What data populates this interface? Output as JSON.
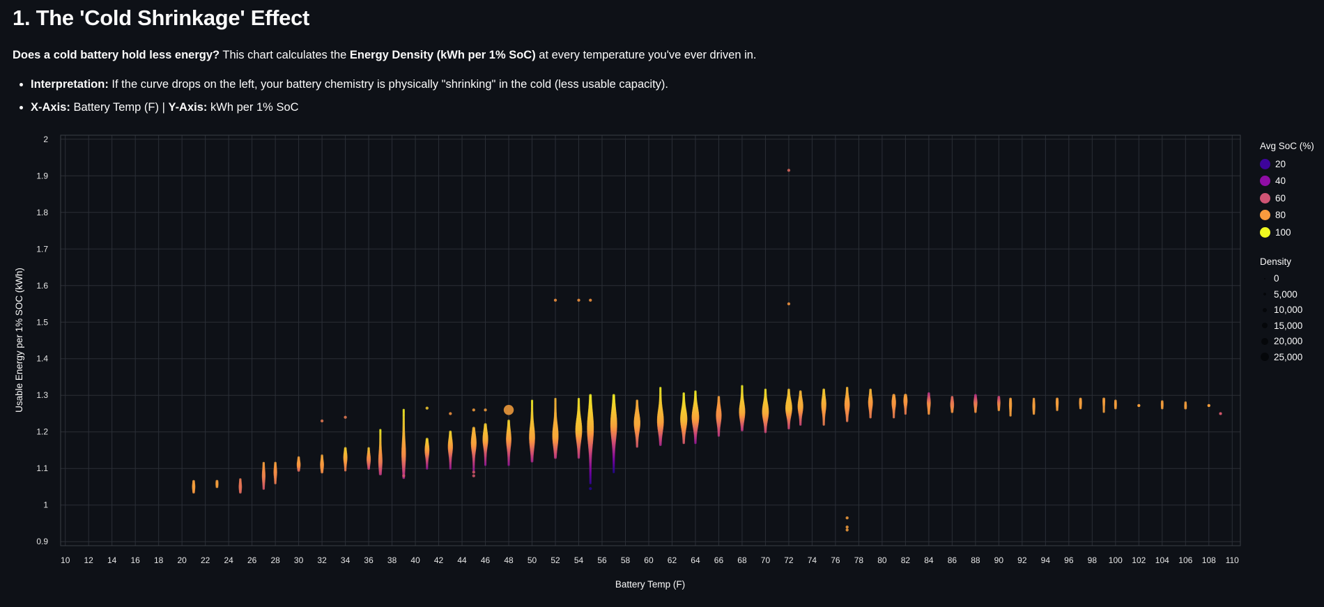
{
  "header": {
    "title": "1. The 'Cold Shrinkage' Effect",
    "intro": [
      {
        "text": "Does a cold battery hold less energy?",
        "bold": true
      },
      {
        "text": " This chart calculates the ",
        "bold": false
      },
      {
        "text": "Energy Density (kWh per 1% SoC)",
        "bold": true
      },
      {
        "text": " at every temperature you've ever driven in.",
        "bold": false
      }
    ],
    "bullets": [
      [
        {
          "text": "Interpretation:",
          "bold": true
        },
        {
          "text": " If the curve drops on the left, your battery chemistry is physically \"shrinking\" in the cold (less usable capacity).",
          "bold": false
        }
      ],
      [
        {
          "text": "X-Axis:",
          "bold": true
        },
        {
          "text": " Battery Temp (F) | ",
          "bold": false
        },
        {
          "text": "Y-Axis:",
          "bold": true
        },
        {
          "text": " kWh per 1% SoC",
          "bold": false
        }
      ]
    ]
  },
  "chart_data": {
    "type": "scatter",
    "xlabel": "Battery Temp (F)",
    "ylabel": "Usable Energy per 1% SOC (kWh)",
    "xlim": [
      9.6,
      110.7
    ],
    "ylim": [
      0.889,
      2.011
    ],
    "xticks": [
      10,
      12,
      14,
      16,
      18,
      20,
      22,
      24,
      26,
      28,
      30,
      32,
      34,
      36,
      38,
      40,
      42,
      44,
      46,
      48,
      50,
      52,
      54,
      56,
      58,
      60,
      62,
      64,
      66,
      68,
      70,
      72,
      74,
      76,
      78,
      80,
      82,
      84,
      86,
      88,
      90,
      92,
      94,
      96,
      98,
      100,
      102,
      104,
      106,
      108,
      110
    ],
    "yticks": [
      0.9,
      1.0,
      1.1,
      1.2,
      1.3,
      1.4,
      1.5,
      1.6,
      1.7,
      1.8,
      1.9,
      2.0
    ],
    "grid": true,
    "colormap": "plasma",
    "color_stops": [
      "#0d0887",
      "#7e03a8",
      "#cc4778",
      "#f89540",
      "#f0f921"
    ],
    "background": "#0e1117",
    "strip_columns": [
      "temp_f",
      "min_kwh",
      "median_kwh",
      "max_kwh",
      "soc_at_min",
      "soc_at_median",
      "soc_at_max",
      "relative_density"
    ],
    "strips": [
      [
        21,
        1.035,
        1.05,
        1.065,
        78,
        80,
        80,
        0.2
      ],
      [
        23,
        1.05,
        1.058,
        1.065,
        80,
        80,
        80,
        0.15
      ],
      [
        25,
        1.035,
        1.05,
        1.07,
        65,
        68,
        70,
        0.2
      ],
      [
        27,
        1.045,
        1.08,
        1.115,
        60,
        72,
        80,
        0.25
      ],
      [
        28,
        1.06,
        1.09,
        1.115,
        70,
        75,
        80,
        0.25
      ],
      [
        30,
        1.095,
        1.11,
        1.13,
        65,
        78,
        80,
        0.3
      ],
      [
        32,
        1.09,
        1.11,
        1.135,
        75,
        78,
        82,
        0.3
      ],
      [
        34,
        1.095,
        1.13,
        1.155,
        70,
        82,
        90,
        0.35
      ],
      [
        36,
        1.1,
        1.125,
        1.155,
        55,
        72,
        88,
        0.35
      ],
      [
        37,
        1.085,
        1.12,
        1.205,
        50,
        70,
        97,
        0.35
      ],
      [
        39,
        1.075,
        1.14,
        1.26,
        45,
        75,
        97,
        0.4
      ],
      [
        41,
        1.1,
        1.15,
        1.18,
        40,
        78,
        92,
        0.45
      ],
      [
        43,
        1.1,
        1.16,
        1.2,
        40,
        78,
        92,
        0.5
      ],
      [
        45,
        1.095,
        1.17,
        1.21,
        40,
        80,
        85,
        0.6
      ],
      [
        46,
        1.11,
        1.18,
        1.22,
        40,
        82,
        90,
        0.6
      ],
      [
        48,
        1.11,
        1.18,
        1.23,
        40,
        78,
        92,
        0.55
      ],
      [
        50,
        1.12,
        1.185,
        1.285,
        45,
        80,
        97,
        0.65
      ],
      [
        52,
        1.13,
        1.19,
        1.29,
        50,
        82,
        85,
        0.7
      ],
      [
        54,
        1.13,
        1.205,
        1.29,
        50,
        85,
        95,
        0.8
      ],
      [
        55,
        1.06,
        1.21,
        1.3,
        18,
        82,
        97,
        0.8
      ],
      [
        57,
        1.09,
        1.22,
        1.3,
        15,
        80,
        97,
        0.8
      ],
      [
        59,
        1.16,
        1.225,
        1.285,
        60,
        82,
        82,
        0.75
      ],
      [
        61,
        1.165,
        1.23,
        1.32,
        45,
        80,
        97,
        0.8
      ],
      [
        63,
        1.17,
        1.235,
        1.305,
        60,
        85,
        97,
        0.85
      ],
      [
        64,
        1.17,
        1.24,
        1.31,
        40,
        80,
        97,
        0.9
      ],
      [
        66,
        1.19,
        1.245,
        1.295,
        50,
        75,
        80,
        0.6
      ],
      [
        68,
        1.205,
        1.255,
        1.325,
        50,
        82,
        97,
        0.7
      ],
      [
        70,
        1.2,
        1.255,
        1.315,
        55,
        82,
        95,
        0.8
      ],
      [
        72,
        1.21,
        1.265,
        1.315,
        55,
        85,
        88,
        0.8
      ],
      [
        73,
        1.22,
        1.27,
        1.31,
        55,
        82,
        85,
        0.6
      ],
      [
        75,
        1.22,
        1.275,
        1.315,
        70,
        82,
        90,
        0.5
      ],
      [
        77,
        1.23,
        1.275,
        1.32,
        70,
        78,
        85,
        0.55
      ],
      [
        79,
        1.24,
        1.28,
        1.315,
        70,
        78,
        85,
        0.45
      ],
      [
        81,
        1.24,
        1.28,
        1.3,
        70,
        78,
        80,
        0.4
      ],
      [
        82,
        1.25,
        1.285,
        1.3,
        70,
        78,
        80,
        0.35
      ],
      [
        84,
        1.25,
        1.28,
        1.305,
        78,
        75,
        50,
        0.3
      ],
      [
        86,
        1.255,
        1.275,
        1.295,
        78,
        72,
        65,
        0.3
      ],
      [
        88,
        1.255,
        1.28,
        1.3,
        78,
        70,
        50,
        0.3
      ],
      [
        90,
        1.26,
        1.28,
        1.295,
        80,
        72,
        55,
        0.2
      ],
      [
        91,
        1.245,
        1.275,
        1.29,
        80,
        80,
        80,
        0.15
      ],
      [
        93,
        1.25,
        1.27,
        1.29,
        80,
        80,
        80,
        0.15
      ],
      [
        95,
        1.26,
        1.28,
        1.29,
        80,
        80,
        80,
        0.15
      ],
      [
        97,
        1.265,
        1.28,
        1.29,
        80,
        80,
        80,
        0.15
      ],
      [
        99,
        1.255,
        1.285,
        1.29,
        80,
        80,
        80,
        0.1
      ],
      [
        100,
        1.265,
        1.275,
        1.285,
        80,
        80,
        80,
        0.1
      ],
      [
        102,
        1.272,
        1.272,
        1.272,
        80,
        80,
        80,
        0.1
      ],
      [
        104,
        1.265,
        1.275,
        1.283,
        80,
        80,
        80,
        0.1
      ],
      [
        106,
        1.265,
        1.27,
        1.28,
        80,
        80,
        80,
        0.1
      ],
      [
        108,
        1.272,
        1.272,
        1.272,
        80,
        80,
        80,
        0.1
      ],
      [
        109,
        1.25,
        1.25,
        1.25,
        60,
        60,
        60,
        0.1
      ]
    ],
    "outlier_columns": [
      "temp_f",
      "kwh",
      "soc",
      "relative_density"
    ],
    "outliers": [
      [
        32,
        1.23,
        70,
        0.1
      ],
      [
        34,
        1.24,
        70,
        0.1
      ],
      [
        39,
        1.08,
        60,
        0.1
      ],
      [
        41,
        1.265,
        90,
        0.1
      ],
      [
        43,
        1.25,
        78,
        0.1
      ],
      [
        45,
        1.26,
        80,
        0.1
      ],
      [
        45,
        1.09,
        60,
        0.1
      ],
      [
        45,
        1.08,
        60,
        0.1
      ],
      [
        46,
        1.26,
        80,
        0.1
      ],
      [
        48,
        1.26,
        80,
        1.0
      ],
      [
        52,
        1.56,
        78,
        0.1
      ],
      [
        54,
        1.56,
        78,
        0.1
      ],
      [
        55,
        1.56,
        78,
        0.1
      ],
      [
        55,
        1.045,
        15,
        0.1
      ],
      [
        72,
        1.55,
        78,
        0.1
      ],
      [
        72,
        1.915,
        65,
        0.1
      ],
      [
        77,
        0.965,
        80,
        0.1
      ],
      [
        77,
        0.94,
        80,
        0.1
      ],
      [
        77,
        0.932,
        80,
        0.1
      ]
    ]
  },
  "legend": {
    "color_title": "Avg SoC (%)",
    "color_items": [
      {
        "label": "20",
        "color": "#3d049b"
      },
      {
        "label": "40",
        "color": "#8f0da4"
      },
      {
        "label": "60",
        "color": "#cf5474"
      },
      {
        "label": "80",
        "color": "#f99a3e"
      },
      {
        "label": "100",
        "color": "#f0f921"
      }
    ],
    "size_title": "Density",
    "size_items": [
      "0",
      "5,000",
      "10,000",
      "15,000",
      "20,000",
      "25,000"
    ]
  }
}
